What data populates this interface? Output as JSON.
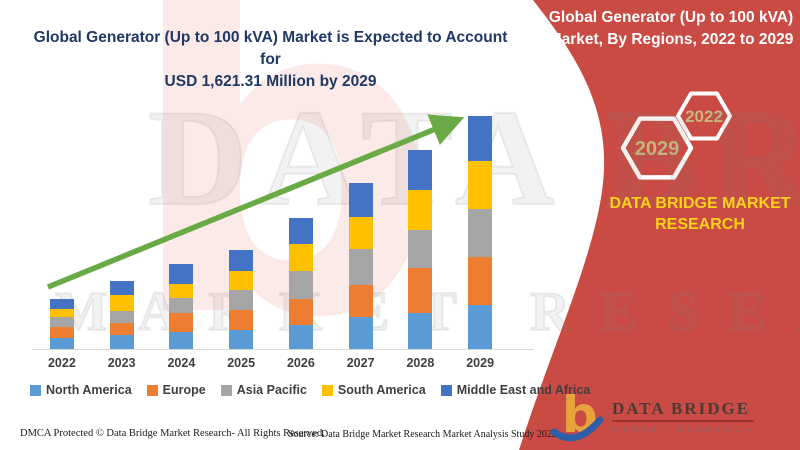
{
  "left": {
    "title_line1": "Global Generator (Up to 100 kVA) Market is Expected to Account for",
    "title_line2": "USD 1,621.31 Million by 2029",
    "footer_dmca": "DMCA Protected © Data Bridge Market Research- All Rights Reserved.",
    "footer_source": "Source: Data Bridge Market Research Market Analysis Study 2022"
  },
  "right": {
    "title_line1": "Global Generator (Up to 100 kVA)",
    "title_line2": "Market, By Regions, 2022 to 2029",
    "hex_large_label": "2029",
    "hex_small_label": "2022",
    "brand_line1": "DATA BRIDGE MARKET",
    "brand_line2": "RESEARCH",
    "logo_name": "DATA BRIDGE",
    "logo_sub": "MARKET RESEARCH"
  },
  "watermark": {
    "letter": "b",
    "line1": "DATA BRIDGE",
    "line2": "MARKET RESEARCH"
  },
  "colors": {
    "panel_red": "#C94B43",
    "title_navy": "#1F3864",
    "brand_yellow": "#FFD21C",
    "hex_gold": "#C9B77E",
    "arrow_green": "#6AAA46",
    "logo_orange": "#E8A23C",
    "logo_blue": "#2F5DA8"
  },
  "chart_data": {
    "type": "stacked-bar",
    "title": "Global Generator (Up to 100 kVA) Market, By Regions, 2022 to 2029",
    "unit": "USD Million",
    "projected_2029_total_usd_million": 1621.31,
    "categories": [
      "2022",
      "2023",
      "2024",
      "2025",
      "2026",
      "2027",
      "2028",
      "2029"
    ],
    "series": [
      {
        "name": "North America",
        "color": "#5B9BD5",
        "values": [
          84,
          104,
          125,
          139,
          174,
          230,
          257,
          313
        ]
      },
      {
        "name": "Europe",
        "color": "#ED7D31",
        "values": [
          77,
          84,
          132,
          139,
          181,
          223,
          313,
          334
        ]
      },
      {
        "name": "Asia Pacific",
        "color": "#A5A5A5",
        "values": [
          70,
          84,
          104,
          139,
          195,
          250,
          264,
          327
        ]
      },
      {
        "name": "South America",
        "color": "#FFC000",
        "values": [
          56,
          111,
          97,
          132,
          188,
          216,
          278,
          334
        ]
      },
      {
        "name": "Middle East and Africa",
        "color": "#4472C4",
        "values": [
          70,
          97,
          139,
          146,
          181,
          237,
          271,
          313
        ]
      }
    ],
    "legend_position": "bottom",
    "gridlines": false,
    "trend_arrow": true
  }
}
